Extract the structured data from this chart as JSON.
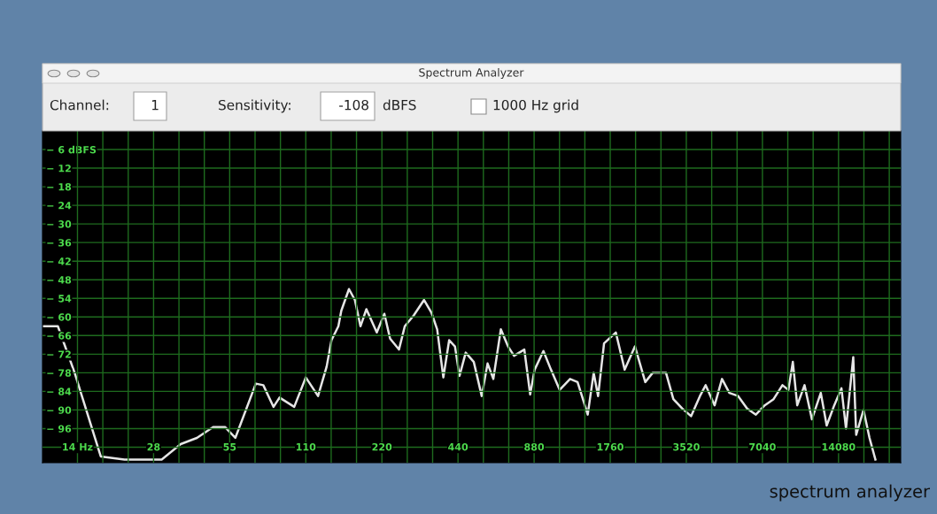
{
  "chart_data": {
    "type": "line",
    "title": "Spectrum Analyzer",
    "annotations": [
      "Channel:",
      "1",
      "Sensitivity:",
      "-108",
      "dBFS",
      "1000 Hz grid",
      "spectrum analyzer"
    ],
    "x": [
      10,
      11.5,
      13.4,
      17.0,
      21.1,
      29.6,
      35.2,
      40.8,
      47.3,
      52.7,
      57.9,
      69.8,
      74.7,
      82.0,
      86.6,
      99.0,
      110,
      123,
      133,
      139,
      148,
      152,
      163,
      172,
      181,
      191,
      210,
      225,
      237,
      257,
      271,
      294,
      323,
      345,
      364,
      385,
      406,
      428,
      446,
      472,
      508,
      546,
      576,
      607,
      650,
      694,
      733,
      805,
      849,
      884,
      958,
      1026,
      1111,
      1221,
      1307,
      1397,
      1434,
      1514,
      1576,
      1664,
      1852,
      2008,
      2205,
      2422,
      2591,
      2925,
      3128,
      3388,
      3675,
      3985,
      4199,
      4555,
      4872,
      5210,
      5643,
      6121,
      6632,
      7188,
      7793,
      8448,
      8920,
      9286,
      9666,
      10330,
      11050,
      11980,
      12640,
      13540,
      14460,
      15070,
      16100,
      16540,
      17680,
      18670,
      19700
    ],
    "series": [
      {
        "color": "#e6e6e6",
        "values": [
          -63,
          -63,
          -78,
          -105,
          -106,
          -106,
          -101,
          -99,
          -95.5,
          -95.5,
          -99,
          -81.5,
          -82,
          -89,
          -86,
          -89,
          -79.5,
          -85.5,
          -76,
          -67.5,
          -63,
          -58,
          -51,
          -54.5,
          -63,
          -57.5,
          -65,
          -59,
          -67,
          -70.5,
          -63,
          -59.5,
          -54.5,
          -58.5,
          -64,
          -79.5,
          -67.5,
          -69.5,
          -79,
          -71.5,
          -74.5,
          -85.5,
          -75,
          -80,
          -64,
          -69.5,
          -72.5,
          -70.5,
          -85,
          -77,
          -71,
          -77,
          -83.5,
          -80,
          -81,
          -88.5,
          -91.5,
          -78,
          -85.5,
          -68.5,
          -65,
          -77,
          -69.5,
          -81,
          -78,
          -78,
          -86.5,
          -89.5,
          -92,
          -85.5,
          -82,
          -88.5,
          -80,
          -84.5,
          -85.5,
          -89.5,
          -91.5,
          -88.5,
          -86.5,
          -82,
          -83.5,
          -74.5,
          -88.5,
          -82,
          -93,
          -84.5,
          -95,
          -88.5,
          -83,
          -96,
          -73,
          -98,
          -90,
          -99,
          -106
        ]
      }
    ],
    "xlim": [
      10,
      24800
    ],
    "ylim": [
      -107,
      0
    ],
    "log": "x",
    "xticks": [
      {
        "value": 13.75,
        "label": "14 Hz"
      },
      {
        "value": 17.32,
        "label": null
      },
      {
        "value": 21.83,
        "label": null
      },
      {
        "value": 27.5,
        "label": "28"
      },
      {
        "value": 34.65,
        "label": null
      },
      {
        "value": 43.65,
        "label": null
      },
      55,
      {
        "value": 69.3,
        "label": null
      },
      {
        "value": 87.31,
        "label": null
      },
      110,
      {
        "value": 138.6,
        "label": null
      },
      {
        "value": 174.6,
        "label": null
      },
      220,
      {
        "value": 277.2,
        "label": null
      },
      {
        "value": 349.2,
        "label": null
      },
      440,
      {
        "value": 554.4,
        "label": null
      },
      {
        "value": 698.5,
        "label": null
      },
      880,
      {
        "value": 1109,
        "label": null
      },
      {
        "value": 1397,
        "label": null
      },
      1760,
      {
        "value": 2217,
        "label": null
      },
      {
        "value": 2794,
        "label": null
      },
      3520,
      {
        "value": 4435,
        "label": null
      },
      {
        "value": 5588,
        "label": null
      },
      7040,
      {
        "value": 8870,
        "label": null
      },
      {
        "value": 11175,
        "label": null
      },
      14080,
      {
        "value": 17740,
        "label": null
      },
      {
        "value": 22350,
        "label": null
      }
    ],
    "yticks": [
      {
        "value": -6,
        "label": "− 6 dBFS"
      },
      {
        "value": -12,
        "label": "− 12"
      },
      {
        "value": -18,
        "label": "− 18"
      },
      {
        "value": -24,
        "label": "− 24"
      },
      {
        "value": -30,
        "label": "− 30"
      },
      {
        "value": -36,
        "label": "− 36"
      },
      {
        "value": -42,
        "label": "− 42"
      },
      {
        "value": -48,
        "label": "− 48"
      },
      {
        "value": -54,
        "label": "− 54"
      },
      {
        "value": -60,
        "label": "− 60"
      },
      {
        "value": -66,
        "label": "− 66"
      },
      {
        "value": -72,
        "label": "− 72"
      },
      {
        "value": -78,
        "label": "− 78"
      },
      {
        "value": -84,
        "label": "− 84"
      },
      {
        "value": -90,
        "label": "− 90"
      },
      {
        "value": -96,
        "label": "− 96"
      },
      {
        "value": -102,
        "label": null
      }
    ],
    "grid": true,
    "legend": false,
    "marker": "none",
    "line_style": "solid"
  }
}
